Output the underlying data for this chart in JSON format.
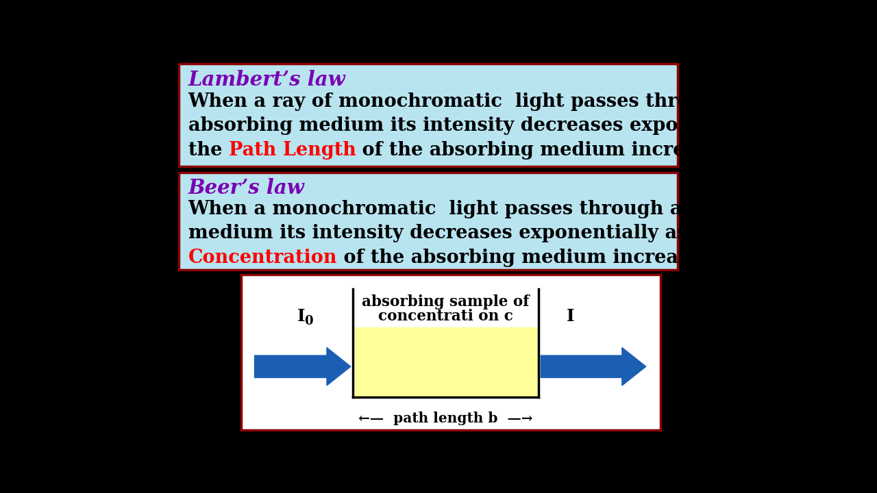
{
  "bg_color": "#000000",
  "box_bg": "#b8e4f0",
  "box_border": "#8b0000",
  "lambert_title": "Lambert’s law",
  "lambert_title_color": "#7b00b4",
  "lambert_body_line1": "When a ray of monochromatic  light passes through an",
  "lambert_body_line2": "absorbing medium its intensity decreases exponentially as",
  "lambert_body_pre": "the ",
  "lambert_body_highlight": "Path Length",
  "lambert_body_highlight_color": "#ff0000",
  "lambert_body_post": " of the absorbing medium increases.",
  "beer_title": "Beer’s law",
  "beer_title_color": "#7b00b4",
  "beer_body_line1": "When a monochromatic  light passes through an absorbing",
  "beer_body_line2": "medium its intensity decreases exponentially as the",
  "beer_body_highlight": "Concentration",
  "beer_body_highlight_color": "#ff0000",
  "beer_body_post": " of the absorbing medium increases.",
  "body_color": "#000000",
  "diagram_bg": "#ffffff",
  "diagram_border": "#8b0000",
  "sample_fill": "#ffff99",
  "sample_border": "#000000",
  "arrow_color": "#1a5fb4",
  "diagram_label_top1": "absorbing sample of",
  "diagram_label_top2": "concentrati on c",
  "diagram_label_path": "←—  path length b  —→"
}
